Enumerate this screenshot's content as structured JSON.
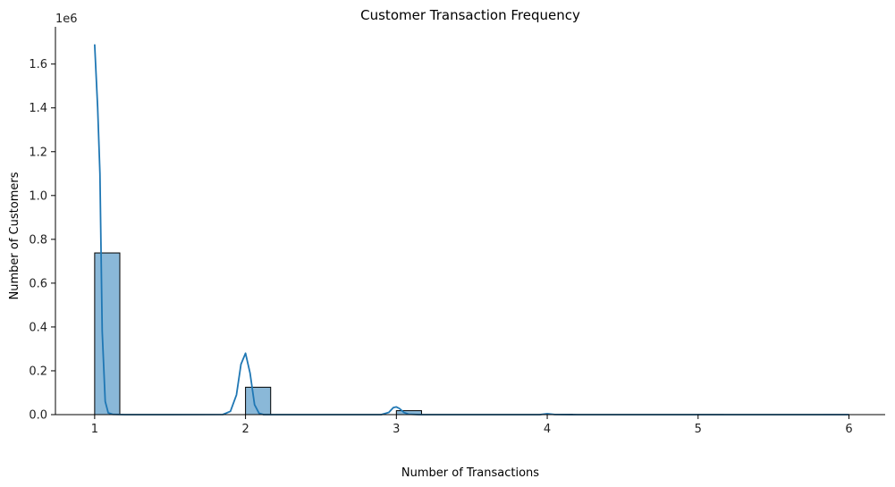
{
  "chart_data": {
    "type": "bar",
    "title": "Customer Transaction Frequency",
    "xlabel": "Number of Transactions",
    "ylabel": "Number of Customers",
    "y_offset_label": "1e6",
    "xlim": [
      0.74,
      6.24
    ],
    "ylim": [
      0,
      1.77
    ],
    "x_ticks": [
      1,
      2,
      3,
      4,
      5,
      6
    ],
    "y_ticks": [
      0.0,
      0.2,
      0.4,
      0.6,
      0.8,
      1.0,
      1.2,
      1.4,
      1.6
    ],
    "y_tick_labels": [
      "0.0",
      "0.2",
      "0.4",
      "0.6",
      "0.8",
      "1.0",
      "1.2",
      "1.4",
      "1.6"
    ],
    "x_tick_labels": [
      "1",
      "2",
      "3",
      "4",
      "5",
      "6"
    ],
    "grid": false,
    "histogram": {
      "bar_fill": "#8ab8d8",
      "bar_edge": "#000000",
      "bins": [
        {
          "x0": 1.0,
          "x1": 1.1667,
          "value": 0.738
        },
        {
          "x0": 2.0,
          "x1": 2.1667,
          "value": 0.125
        },
        {
          "x0": 3.0,
          "x1": 3.1667,
          "value": 0.018
        },
        {
          "x0": 4.0,
          "x1": 4.1667,
          "value": 0.002
        },
        {
          "x0": 5.0,
          "x1": 5.1667,
          "value": 0.0003
        },
        {
          "x0": 5.8333,
          "x1": 6.0,
          "value": 0.0001
        }
      ]
    },
    "kde": {
      "color": "#1f77b4",
      "x": [
        1.0,
        1.02,
        1.035,
        1.05,
        1.07,
        1.09,
        1.12,
        1.2,
        1.5,
        1.85,
        1.9,
        1.94,
        1.97,
        2.0,
        2.03,
        2.06,
        2.09,
        2.12,
        2.2,
        2.5,
        2.9,
        2.95,
        2.98,
        3.0,
        3.02,
        3.05,
        3.08,
        3.15,
        3.5,
        3.95,
        4.0,
        4.05,
        4.2,
        5.0,
        6.0
      ],
      "y": [
        1.69,
        1.4,
        1.1,
        0.38,
        0.06,
        0.008,
        0.001,
        0.0,
        0.0,
        0.0005,
        0.015,
        0.09,
        0.23,
        0.28,
        0.19,
        0.045,
        0.006,
        0.0,
        0.0,
        0.0,
        0.0,
        0.01,
        0.032,
        0.035,
        0.028,
        0.01,
        0.002,
        0.0,
        0.0,
        0.0,
        0.004,
        0.0005,
        0.0,
        0.0,
        0.0
      ]
    }
  }
}
